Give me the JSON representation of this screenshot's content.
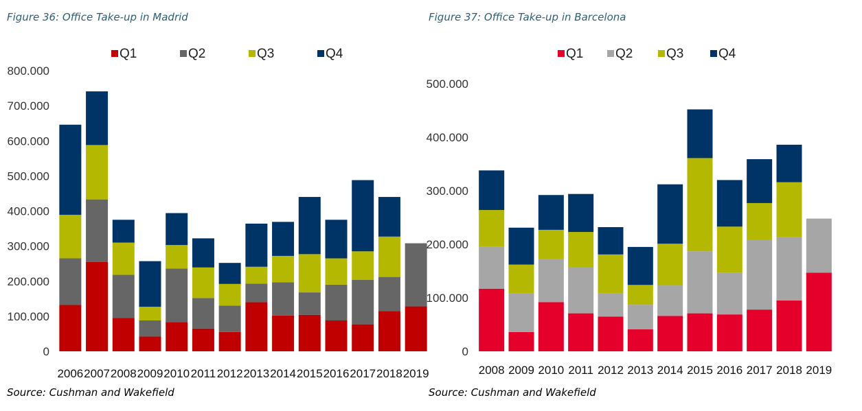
{
  "chart_data": [
    {
      "type": "bar",
      "stacked": true,
      "title": "Figure 36: Office Take-up in Madrid",
      "source": "Source: Cushman and Wakefield",
      "legend_position": "top",
      "grid": false,
      "ylim": [
        0,
        800000
      ],
      "y_ticks": [
        "0",
        "100.000",
        "200.000",
        "300.000",
        "400.000",
        "500.000",
        "600.000",
        "700.000",
        "800.000"
      ],
      "categories": [
        "2006",
        "2007",
        "2008",
        "2009",
        "2010",
        "2011",
        "2012",
        "2013",
        "2014",
        "2015",
        "2016",
        "2017",
        "2018",
        "2019"
      ],
      "series": [
        {
          "name": "Q1",
          "color": "#c00000",
          "values": [
            132000,
            255000,
            95000,
            42000,
            83000,
            65000,
            55000,
            140000,
            102000,
            104000,
            88000,
            77000,
            115000,
            128000
          ]
        },
        {
          "name": "Q2",
          "color": "#666666",
          "values": [
            133000,
            178000,
            123000,
            46000,
            153000,
            87000,
            75000,
            53000,
            95000,
            64000,
            102000,
            127000,
            97000,
            180000
          ]
        },
        {
          "name": "Q3",
          "color": "#b5b800",
          "values": [
            124000,
            155000,
            92000,
            39000,
            67000,
            87000,
            62000,
            48000,
            75000,
            109000,
            75000,
            81000,
            115000,
            0
          ]
        },
        {
          "name": "Q4",
          "color": "#003366",
          "values": [
            257000,
            153000,
            65000,
            130000,
            91000,
            83000,
            60000,
            123000,
            97000,
            163000,
            110000,
            203000,
            113000,
            0
          ]
        }
      ]
    },
    {
      "type": "bar",
      "stacked": true,
      "title": "Figure 37: Office Take-up in Barcelona",
      "source": "Source: Cushman and Wakefield",
      "legend_position": "top",
      "grid": false,
      "ylim": [
        0,
        500000
      ],
      "y_ticks": [
        "0",
        "100.000",
        "200.000",
        "300.000",
        "400.000",
        "500.000"
      ],
      "categories": [
        "2008",
        "2009",
        "2010",
        "2011",
        "2012",
        "2013",
        "2014",
        "2015",
        "2016",
        "2017",
        "2018",
        "2019"
      ],
      "series": [
        {
          "name": "Q1",
          "color": "#e4002b",
          "values": [
            117000,
            36000,
            92000,
            71000,
            65000,
            41000,
            66000,
            71000,
            69000,
            78000,
            95000,
            147000
          ]
        },
        {
          "name": "Q2",
          "color": "#a6a6a6",
          "values": [
            79000,
            72000,
            81000,
            86000,
            43000,
            46000,
            57000,
            116000,
            78000,
            131000,
            118000,
            101000
          ]
        },
        {
          "name": "Q3",
          "color": "#b5b800",
          "values": [
            68000,
            54000,
            54000,
            66000,
            73000,
            37000,
            78000,
            174000,
            86000,
            68000,
            103000,
            0
          ]
        },
        {
          "name": "Q4",
          "color": "#003366",
          "values": [
            74000,
            69000,
            65000,
            71000,
            51000,
            71000,
            111000,
            91000,
            87000,
            82000,
            70000,
            0
          ]
        }
      ]
    }
  ]
}
